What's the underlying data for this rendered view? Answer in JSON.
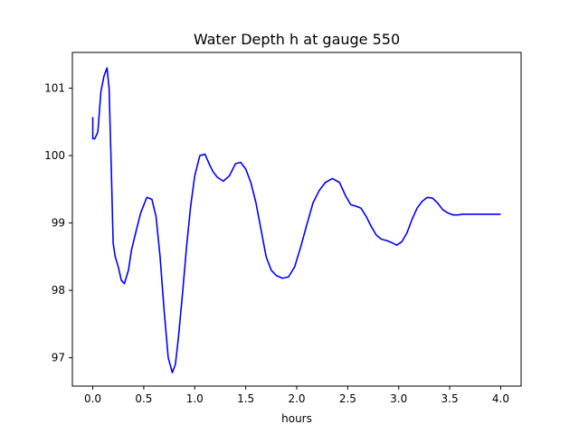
{
  "chart_data": {
    "type": "line",
    "title": "Water Depth h at gauge 550",
    "xlabel": "hours",
    "ylabel": "",
    "xlim": [
      -0.2,
      4.2
    ],
    "ylim": [
      96.58,
      101.53
    ],
    "grid": false,
    "x_ticks": [
      {
        "value": 0.0,
        "label": "0.0"
      },
      {
        "value": 0.5,
        "label": "0.5"
      },
      {
        "value": 1.0,
        "label": "1.0"
      },
      {
        "value": 1.5,
        "label": "1.5"
      },
      {
        "value": 2.0,
        "label": "2.0"
      },
      {
        "value": 2.5,
        "label": "2.5"
      },
      {
        "value": 3.0,
        "label": "3.0"
      },
      {
        "value": 3.5,
        "label": "3.5"
      },
      {
        "value": 4.0,
        "label": "4.0"
      }
    ],
    "y_ticks": [
      {
        "value": 97,
        "label": "97"
      },
      {
        "value": 98,
        "label": "98"
      },
      {
        "value": 99,
        "label": "99"
      },
      {
        "value": 100,
        "label": "100"
      },
      {
        "value": 101,
        "label": "101"
      }
    ],
    "series": [
      {
        "color": "#0000ff",
        "x": [
          0.0,
          0.0,
          0.02,
          0.05,
          0.08,
          0.11,
          0.14,
          0.16,
          0.18,
          0.2,
          0.22,
          0.25,
          0.28,
          0.31,
          0.35,
          0.38,
          0.42,
          0.47,
          0.53,
          0.58,
          0.62,
          0.66,
          0.7,
          0.74,
          0.78,
          0.81,
          0.84,
          0.88,
          0.92,
          0.96,
          1.0,
          1.05,
          1.1,
          1.15,
          1.18,
          1.22,
          1.28,
          1.34,
          1.4,
          1.45,
          1.5,
          1.55,
          1.6,
          1.65,
          1.7,
          1.75,
          1.8,
          1.86,
          1.92,
          1.98,
          2.04,
          2.1,
          2.16,
          2.22,
          2.28,
          2.35,
          2.42,
          2.48,
          2.53,
          2.58,
          2.63,
          2.68,
          2.73,
          2.78,
          2.83,
          2.88,
          2.93,
          2.98,
          3.03,
          3.08,
          3.13,
          3.18,
          3.23,
          3.28,
          3.33,
          3.38,
          3.43,
          3.48,
          3.53,
          3.58,
          3.63,
          3.68,
          3.73,
          3.78,
          3.83,
          3.88,
          3.93,
          3.97,
          4.0
        ],
        "y": [
          100.57,
          100.25,
          100.25,
          100.35,
          100.95,
          101.18,
          101.3,
          101.0,
          99.9,
          98.7,
          98.5,
          98.35,
          98.15,
          98.1,
          98.3,
          98.6,
          98.85,
          99.15,
          99.38,
          99.35,
          99.1,
          98.5,
          97.7,
          97.0,
          96.78,
          96.9,
          97.3,
          97.95,
          98.65,
          99.25,
          99.7,
          100.0,
          100.02,
          99.85,
          99.76,
          99.68,
          99.62,
          99.7,
          99.88,
          99.9,
          99.8,
          99.6,
          99.3,
          98.9,
          98.5,
          98.3,
          98.22,
          98.18,
          98.2,
          98.35,
          98.65,
          98.98,
          99.3,
          99.48,
          99.6,
          99.66,
          99.6,
          99.4,
          99.27,
          99.25,
          99.22,
          99.1,
          98.95,
          98.82,
          98.76,
          98.74,
          98.71,
          98.67,
          98.72,
          98.85,
          99.05,
          99.22,
          99.32,
          99.38,
          99.37,
          99.3,
          99.2,
          99.15,
          99.12,
          99.12,
          99.13,
          99.13,
          99.13,
          99.13,
          99.13,
          99.13,
          99.13,
          99.13,
          99.13
        ]
      }
    ]
  }
}
